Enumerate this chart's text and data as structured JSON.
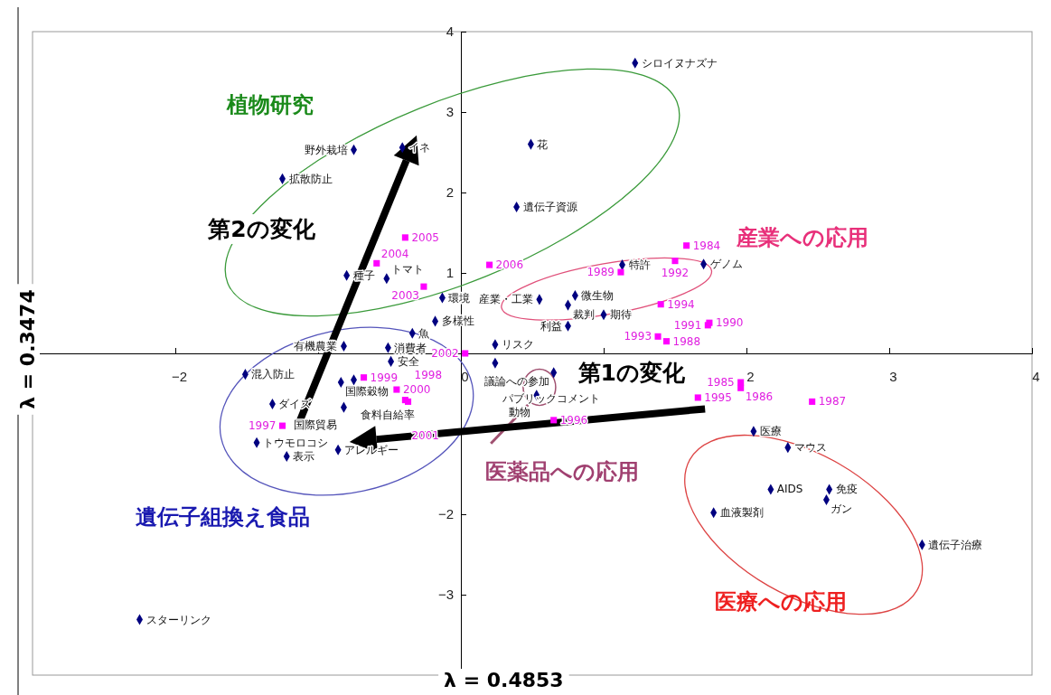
{
  "chart_data": {
    "type": "scatter",
    "xlabel": "λ = 0.4853",
    "ylabel": "λ = 0.3474",
    "xlim": [
      -3,
      4
    ],
    "ylim": [
      -4,
      4
    ],
    "xticks": [
      -2,
      {
        "value": -1,
        "label": null
      },
      0,
      {
        "value": 1,
        "label": null
      },
      2,
      3,
      4
    ],
    "yticks": [
      -3,
      -2,
      1,
      2,
      3,
      4
    ],
    "grid": false,
    "legend": false,
    "annotations": [
      "植物研究",
      "産業への応用",
      "医薬品への応用",
      "遺伝子組換え食品",
      "医療への応用",
      "第2の変化",
      "第1の変化",
      {
        "text": "シロイヌナズナ",
        "x": 1.22,
        "y": 3.61
      },
      {
        "text": "花",
        "x": 0.49,
        "y": 2.6
      },
      {
        "text": "遺伝子資源",
        "x": 0.39,
        "y": 1.82
      },
      {
        "text": "野外栽培",
        "x": -0.75,
        "y": 2.53
      },
      {
        "text": "イネ",
        "x": -0.41,
        "y": 2.56
      },
      {
        "text": "拡散防止",
        "x": -1.25,
        "y": 2.17
      },
      {
        "text": "種子",
        "x": -0.8,
        "y": 0.97
      },
      {
        "text": "トマト",
        "x": -0.52,
        "y": 0.93
      },
      {
        "text": "環境",
        "x": -0.13,
        "y": 0.69
      },
      {
        "text": "多様性",
        "x": -0.18,
        "y": 0.4
      },
      {
        "text": "魚",
        "x": -0.34,
        "y": 0.25
      },
      {
        "text": "有機農業",
        "x": -0.82,
        "y": 0.09
      },
      {
        "text": "消費者",
        "x": -0.51,
        "y": 0.07
      },
      {
        "text": "安全",
        "x": -0.49,
        "y": -0.1
      },
      {
        "text": "混入防止",
        "x": -1.51,
        "y": -0.26
      },
      {
        "text": "国際穀物",
        "x": -0.84,
        "y": -0.36
      },
      {
        "text": "食料自給率",
        "x": -0.75,
        "y": -0.33
      },
      {
        "text": "ダイズ",
        "x": -1.32,
        "y": -0.63
      },
      {
        "text": "国際貿易",
        "x": -0.82,
        "y": -0.67
      },
      {
        "text": "トウモロコシ",
        "x": -1.43,
        "y": -1.11
      },
      {
        "text": "表示",
        "x": -1.22,
        "y": -1.28
      },
      {
        "text": "アレルギー",
        "x": -0.86,
        "y": -1.2
      },
      {
        "text": "スターリンク",
        "x": -2.25,
        "y": -3.31
      },
      {
        "text": "リスク",
        "x": 0.24,
        "y": 0.11
      },
      {
        "text": "パブリックコメント",
        "x": 0.24,
        "y": -0.12
      },
      {
        "text": "議論への参加",
        "x": 0.65,
        "y": -0.24
      },
      {
        "text": "動物",
        "x": 0.53,
        "y": -0.52
      },
      {
        "text": "裁判",
        "x": 0.75,
        "y": 0.6
      },
      {
        "text": "産業・工業",
        "x": 0.55,
        "y": 0.67
      },
      {
        "text": "微生物",
        "x": 0.8,
        "y": 0.72
      },
      {
        "text": "期待",
        "x": 1.0,
        "y": 0.48
      },
      {
        "text": "利益",
        "x": 0.75,
        "y": 0.34
      },
      {
        "text": "特許",
        "x": 1.13,
        "y": 1.1
      },
      {
        "text": "ゲノム",
        "x": 1.7,
        "y": 1.11
      },
      {
        "text": "医療",
        "x": 2.05,
        "y": -0.97
      },
      {
        "text": "マウス",
        "x": 2.29,
        "y": -1.17
      },
      {
        "text": "AIDS",
        "x": 2.17,
        "y": -1.69
      },
      {
        "text": "免疫",
        "x": 2.58,
        "y": -1.69
      },
      {
        "text": "ガン",
        "x": 2.56,
        "y": -1.82
      },
      {
        "text": "血液製剤",
        "x": 1.77,
        "y": -1.98
      },
      {
        "text": "遺伝子治療",
        "x": 3.23,
        "y": -2.38
      },
      {
        "text": "2005",
        "x": -0.39,
        "y": 1.44
      },
      {
        "text": "2004",
        "x": -0.59,
        "y": 1.12
      },
      {
        "text": "2003",
        "x": -0.26,
        "y": 0.83
      },
      {
        "text": "2006",
        "x": 0.2,
        "y": 1.1
      },
      {
        "text": "2002",
        "x": 0.03,
        "y": 0.0
      },
      {
        "text": "1984",
        "x": 1.58,
        "y": 1.34
      },
      {
        "text": "1992",
        "x": 1.5,
        "y": 1.15
      },
      {
        "text": "1989",
        "x": 1.12,
        "y": 1.01
      },
      {
        "text": "1994",
        "x": 1.4,
        "y": 0.61
      },
      {
        "text": "1990",
        "x": 1.74,
        "y": 0.38
      },
      {
        "text": "1991",
        "x": 1.73,
        "y": 0.35
      },
      {
        "text": "1993",
        "x": 1.38,
        "y": 0.21
      },
      {
        "text": "1988",
        "x": 1.44,
        "y": 0.15
      },
      {
        "text": "1985",
        "x": 1.96,
        "y": -0.36
      },
      {
        "text": "1986",
        "x": 1.96,
        "y": -0.43
      },
      {
        "text": "1987",
        "x": 2.46,
        "y": -0.6
      },
      {
        "text": "1995",
        "x": 1.66,
        "y": -0.55
      },
      {
        "text": "1996",
        "x": 0.65,
        "y": -0.83
      },
      {
        "text": "1997",
        "x": -1.25,
        "y": -0.9
      },
      {
        "text": "1999",
        "x": -0.68,
        "y": -0.3
      },
      {
        "text": "2000",
        "x": -0.45,
        "y": -0.45
      },
      {
        "text": "2001",
        "x": -0.39,
        "y": -0.58
      },
      {
        "text": "1998",
        "x": -0.37,
        "y": -0.6
      }
    ],
    "series": [
      {
        "color": "#000080",
        "marker": "diamond",
        "x": [
          1.22,
          0.49,
          0.39,
          -0.75,
          -0.41,
          -1.25,
          -0.8,
          -0.52,
          -0.13,
          -0.18,
          -0.34,
          -0.82,
          -0.51,
          -0.49,
          -1.51,
          -0.84,
          -0.75,
          -1.32,
          -0.82,
          -1.43,
          -1.22,
          -0.86,
          -2.25,
          0.24,
          0.24,
          0.65,
          0.53,
          0.75,
          0.55,
          0.8,
          1.0,
          0.75,
          1.13,
          1.7,
          2.05,
          2.29,
          2.17,
          2.58,
          2.56,
          1.77,
          3.23
        ],
        "values": [
          3.61,
          2.6,
          1.82,
          2.53,
          2.56,
          2.17,
          0.97,
          0.93,
          0.69,
          0.4,
          0.25,
          0.09,
          0.07,
          -0.1,
          -0.26,
          -0.36,
          -0.33,
          -0.63,
          -0.67,
          -1.11,
          -1.28,
          -1.2,
          -3.31,
          0.11,
          -0.12,
          -0.24,
          -0.52,
          0.6,
          0.67,
          0.72,
          0.48,
          0.34,
          1.1,
          1.11,
          -0.97,
          -1.17,
          -1.69,
          -1.69,
          -1.82,
          -1.98,
          -2.38
        ]
      },
      {
        "color": "#ff00ff",
        "marker": "square",
        "x": [
          -0.39,
          -0.59,
          -0.26,
          0.2,
          0.03,
          1.58,
          1.5,
          1.12,
          1.4,
          1.74,
          1.73,
          1.38,
          1.44,
          1.96,
          1.96,
          2.46,
          1.66,
          0.65,
          -1.25,
          -0.68,
          -0.45,
          -0.39,
          -0.37
        ],
        "values": [
          1.44,
          1.12,
          0.83,
          1.1,
          0.0,
          1.34,
          1.15,
          1.01,
          0.61,
          0.38,
          0.35,
          0.21,
          0.15,
          -0.36,
          -0.43,
          -0.6,
          -0.55,
          -0.83,
          -0.9,
          -0.3,
          -0.45,
          -0.58,
          -0.6
        ]
      }
    ]
  }
}
